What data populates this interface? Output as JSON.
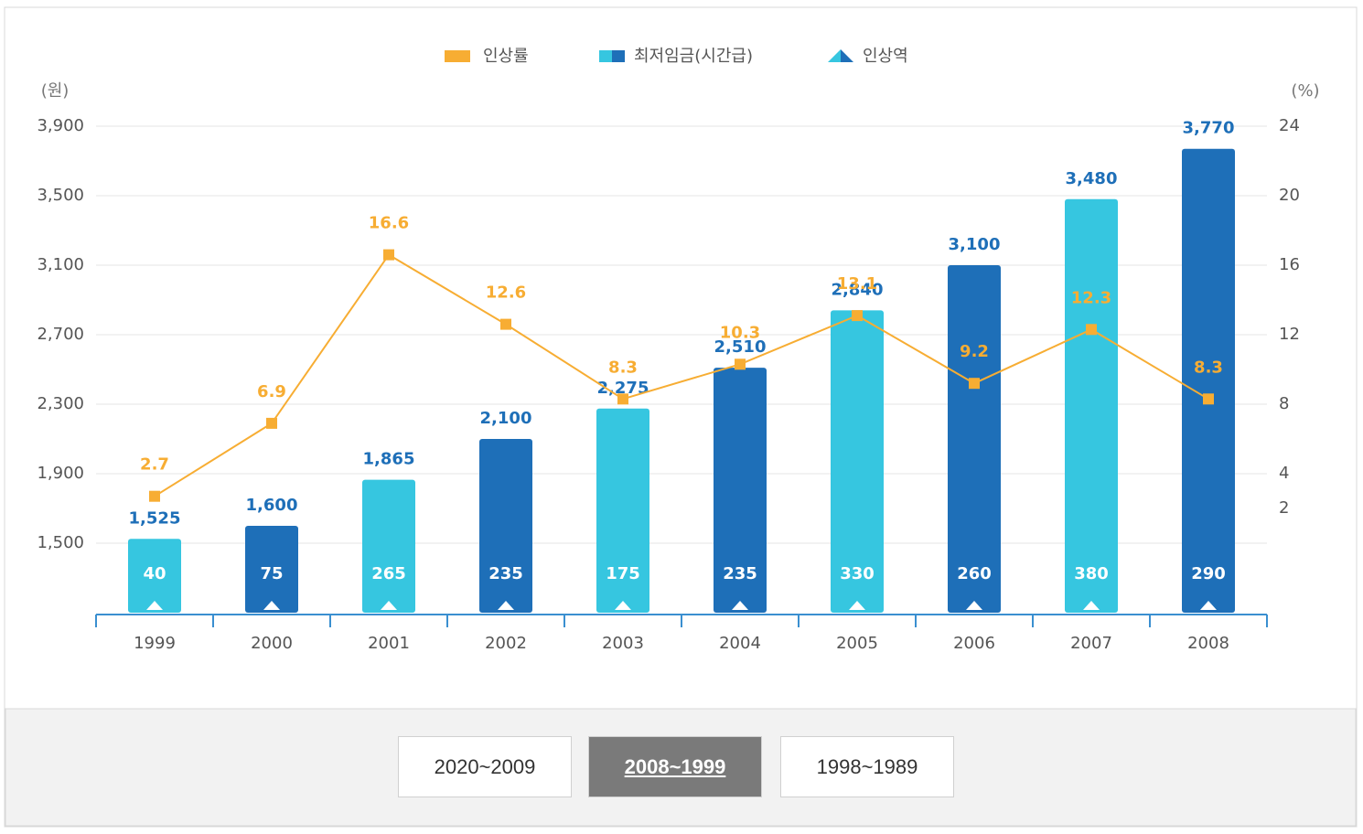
{
  "chart_data": {
    "type": "bar",
    "y_unit": "(원)",
    "y2_unit": "(%)",
    "categories": [
      "1999",
      "2000",
      "2001",
      "2002",
      "2003",
      "2004",
      "2005",
      "2006",
      "2007",
      "2008"
    ],
    "series": [
      {
        "name": "인상률",
        "type": "line",
        "axis": "y2",
        "color": "#f7ad33",
        "values": [
          2.7,
          6.9,
          16.6,
          12.6,
          8.3,
          10.3,
          13.1,
          9.2,
          12.3,
          8.3
        ]
      },
      {
        "name": "최저임금(시간급)",
        "type": "bar",
        "color": "#1e6fb8",
        "colors": [
          "#36c6e0",
          "#1e6fb8",
          "#36c6e0",
          "#1e6fb8",
          "#36c6e0",
          "#1e6fb8",
          "#36c6e0",
          "#1e6fb8",
          "#36c6e0",
          "#1e6fb8"
        ],
        "values": [
          1525,
          1600,
          1865,
          2100,
          2275,
          2510,
          2840,
          3100,
          3480,
          3770
        ],
        "value_labels": [
          "1,525",
          "1,600",
          "1,865",
          "2,100",
          "2,275",
          "2,510",
          "2,840",
          "3,100",
          "3,480",
          "3,770"
        ]
      },
      {
        "name": "인상역",
        "type": "marker",
        "color": "#36c6e0",
        "values": [
          40,
          75,
          265,
          235,
          175,
          235,
          330,
          260,
          380,
          290
        ]
      }
    ],
    "ylim": [
      1100,
      3900
    ],
    "yticks": [
      {
        "value": 1500,
        "label": "1,500"
      },
      {
        "value": 1900,
        "label": "1,900"
      },
      {
        "value": 2300,
        "label": "2,300"
      },
      {
        "value": 2700,
        "label": "2,700"
      },
      {
        "value": 3100,
        "label": "3,100"
      },
      {
        "value": 3500,
        "label": "3,500"
      },
      {
        "value": 3900,
        "label": "3,900"
      }
    ],
    "y2lim": [
      -4,
      24
    ],
    "y2ticks": [
      2,
      4,
      8,
      12,
      16,
      20,
      24
    ],
    "grid": true
  },
  "buttons": [
    "2020~2009",
    "2008~1999",
    "1998~1989"
  ],
  "active_button": 1
}
